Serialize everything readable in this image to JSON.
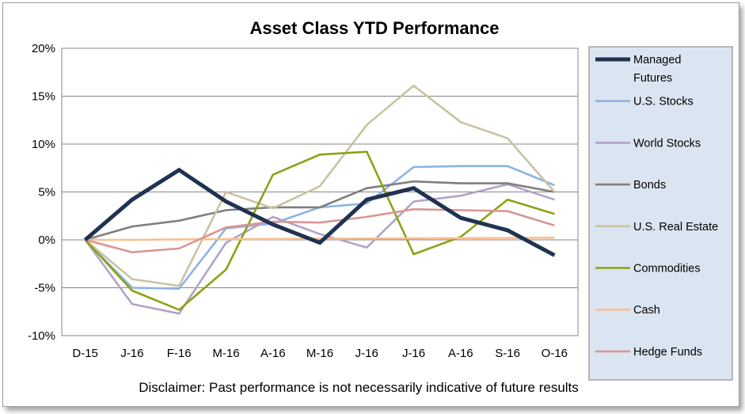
{
  "chart_data": {
    "type": "line",
    "title": "Asset Class YTD Performance",
    "categories": [
      "D-15",
      "J-16",
      "F-16",
      "M-16",
      "A-16",
      "M-16",
      "J-16",
      "J-16",
      "A-16",
      "S-16",
      "O-16"
    ],
    "y_ticks": [
      "20%",
      "15%",
      "10%",
      "5%",
      "0%",
      "-5%",
      "-10%"
    ],
    "ylim": [
      -10,
      20
    ],
    "y_unit": "%",
    "grid": "horizontal",
    "legend_position": "right",
    "series": [
      {
        "name": "Managed Futures",
        "color": "#1f3350",
        "values": [
          0,
          4.2,
          7.3,
          4.0,
          1.6,
          -0.3,
          4.2,
          5.4,
          2.3,
          1.0,
          -1.6
        ]
      },
      {
        "name": "U.S. Stocks",
        "color": "#8db3e2",
        "values": [
          0,
          -5.0,
          -5.1,
          1.2,
          1.7,
          3.4,
          3.8,
          7.6,
          7.7,
          7.7,
          5.7
        ]
      },
      {
        "name": "World Stocks",
        "color": "#b3a2c7",
        "values": [
          0,
          -6.7,
          -7.7,
          -0.3,
          2.4,
          0.6,
          -0.8,
          4.0,
          4.6,
          5.8,
          4.2
        ]
      },
      {
        "name": "Bonds",
        "color": "#7f7f7f",
        "values": [
          0,
          1.4,
          2.0,
          3.1,
          3.4,
          3.4,
          5.4,
          6.1,
          5.9,
          5.9,
          5.0
        ]
      },
      {
        "name": "U.S. Real Estate",
        "color": "#c9c3a2",
        "values": [
          0,
          -4.1,
          -4.8,
          5.0,
          3.3,
          5.6,
          12.0,
          16.1,
          12.3,
          10.6,
          5.0
        ]
      },
      {
        "name": "Commodities",
        "color": "#8ea118",
        "values": [
          0,
          -5.3,
          -7.3,
          -3.1,
          6.8,
          8.9,
          9.2,
          -1.5,
          0.3,
          4.2,
          2.7
        ]
      },
      {
        "name": "Cash",
        "color": "#fac090",
        "values": [
          0,
          0,
          0.05,
          0.08,
          0.1,
          0.12,
          0.14,
          0.16,
          0.18,
          0.2,
          0.22
        ]
      },
      {
        "name": "Hedge Funds",
        "color": "#d99594",
        "values": [
          0,
          -1.3,
          -0.9,
          1.3,
          1.9,
          1.8,
          2.4,
          3.2,
          3.1,
          3.0,
          1.5
        ]
      }
    ],
    "legend_colors": {
      "background": "#dbe5f1",
      "border": "#7f7f7f"
    }
  },
  "disclaimer": "Disclaimer: Past performance is not necessarily indicative of future results"
}
